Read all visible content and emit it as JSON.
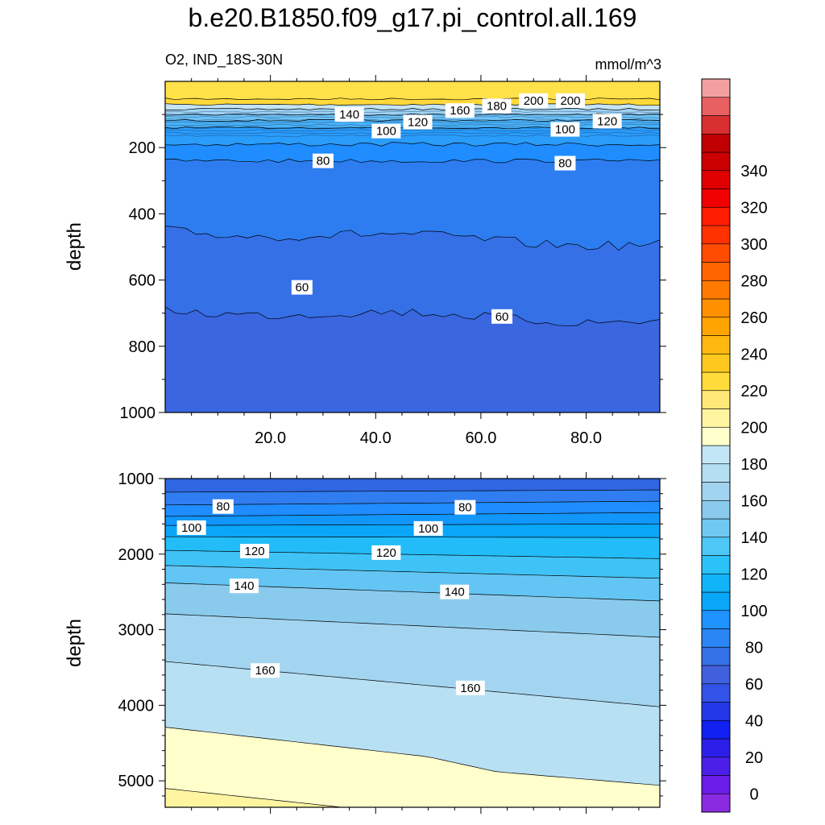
{
  "title": "b.e20.B1850.f09_g17.pi_control.all.169",
  "variable": "O2, IND_18S-30N",
  "units": "mmol/m^3",
  "colorbar": {
    "colors": [
      "#8a2be2",
      "#6a1de8",
      "#4b1fe8",
      "#2c1ee8",
      "#1020f0",
      "#2339e8",
      "#3352e8",
      "#4060de",
      "#3470e6",
      "#2a86f4",
      "#1f93ff",
      "#0aa6f8",
      "#11b4f8",
      "#2ac2f7",
      "#4ec7f6",
      "#6fc9f2",
      "#8acbed",
      "#a0d4f0",
      "#b4dff3",
      "#c2e6f5",
      "#ffffcc",
      "#fff5a0",
      "#ffe878",
      "#ffdc3a",
      "#ffc81e",
      "#ffb810",
      "#ffa400",
      "#ff9000",
      "#ff7a00",
      "#ff6400",
      "#ff4c00",
      "#ff3200",
      "#ff1c00",
      "#f00000",
      "#e00000",
      "#cc0000",
      "#c00000",
      "#d83030",
      "#e86060",
      "#f4a0a0"
    ],
    "labels": [
      "0",
      "20",
      "40",
      "60",
      "80",
      "100",
      "120",
      "140",
      "160",
      "180",
      "200",
      "220",
      "240",
      "260",
      "280",
      "300",
      "320",
      "340"
    ]
  },
  "chart_data": [
    {
      "type": "contour",
      "panel": "upper",
      "ylabel": "depth",
      "ylim": [
        1000,
        0
      ],
      "xlim": [
        0,
        94
      ],
      "x_ticks": [
        "20.0",
        "40.0",
        "60.0",
        "80.0"
      ],
      "x_tick_values": [
        20,
        40,
        60,
        80
      ],
      "y_ticks": [
        "200",
        "400",
        "600",
        "800",
        "1000"
      ],
      "y_tick_values": [
        200,
        400,
        600,
        800,
        1000
      ],
      "contour_levels": [
        200,
        180,
        160,
        140,
        120,
        100,
        80,
        70,
        60
      ],
      "contour_depths": [
        53,
        70,
        84,
        100,
        118,
        140,
        190,
        240,
        450,
        690
      ],
      "contour_labels": [
        {
          "text": "200",
          "x": 70,
          "y": 58
        },
        {
          "text": "200",
          "x": 77,
          "y": 58
        },
        {
          "text": "180",
          "x": 63,
          "y": 74
        },
        {
          "text": "160",
          "x": 56,
          "y": 88
        },
        {
          "text": "140",
          "x": 35,
          "y": 100
        },
        {
          "text": "120",
          "x": 48,
          "y": 123
        },
        {
          "text": "120",
          "x": 84,
          "y": 120
        },
        {
          "text": "100",
          "x": 42,
          "y": 150
        },
        {
          "text": "100",
          "x": 76,
          "y": 145
        },
        {
          "text": "80",
          "x": 30,
          "y": 240
        },
        {
          "text": "80",
          "x": 76,
          "y": 247
        },
        {
          "text": "60",
          "x": 26,
          "y": 622
        },
        {
          "text": "60",
          "x": 64,
          "y": 710
        }
      ]
    },
    {
      "type": "contour",
      "panel": "lower",
      "ylabel": "depth",
      "ylim": [
        5350,
        1000
      ],
      "xlim": [
        0,
        94
      ],
      "y_ticks": [
        "1000",
        "2000",
        "3000",
        "4000",
        "5000"
      ],
      "y_tick_values": [
        1000,
        2000,
        3000,
        4000,
        5000
      ],
      "contour_levels": [
        80,
        100,
        120,
        140,
        160,
        180
      ],
      "contour_labels": [
        {
          "text": "80",
          "x": 11,
          "y": 1370
        },
        {
          "text": "80",
          "x": 57,
          "y": 1380
        },
        {
          "text": "100",
          "x": 5,
          "y": 1650
        },
        {
          "text": "100",
          "x": 50,
          "y": 1660
        },
        {
          "text": "120",
          "x": 17,
          "y": 1960
        },
        {
          "text": "120",
          "x": 42,
          "y": 1980
        },
        {
          "text": "140",
          "x": 15,
          "y": 2420
        },
        {
          "text": "140",
          "x": 55,
          "y": 2500
        },
        {
          "text": "160",
          "x": 19,
          "y": 3540
        },
        {
          "text": "160",
          "x": 58,
          "y": 3770
        }
      ]
    }
  ]
}
